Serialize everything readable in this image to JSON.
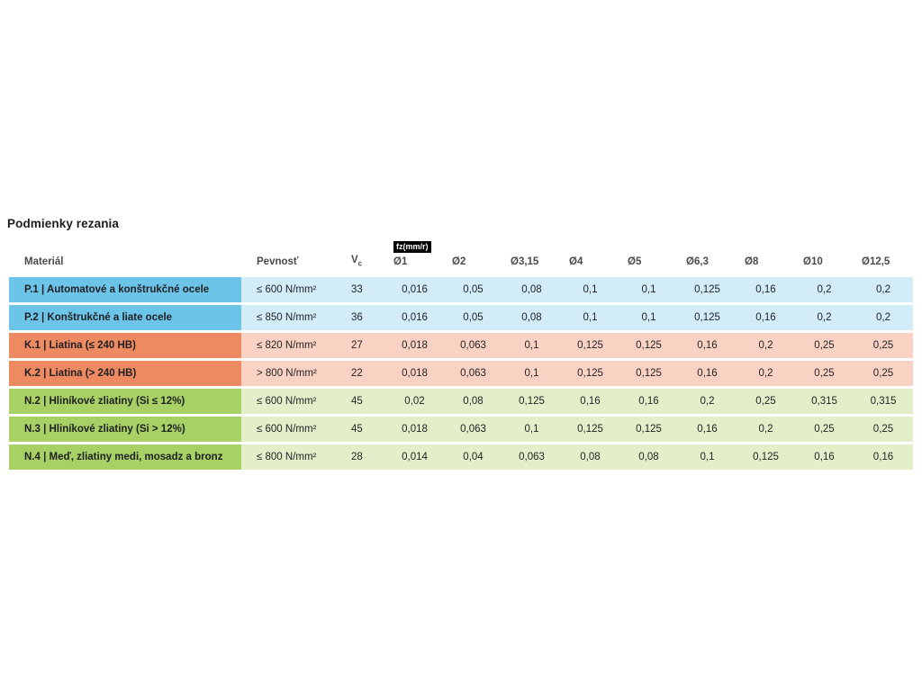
{
  "title": "Podmienky rezania",
  "colors": {
    "blue_dark": "#6cc4e8",
    "blue_light": "#d2ecf8",
    "orange_dark": "#ee8a62",
    "orange_light": "#fad2c3",
    "green_dark": "#a7d065",
    "green_light": "#e3efc9",
    "badge_bg": "#000000",
    "badge_text": "#ffffff"
  },
  "table": {
    "headers": {
      "material": "Materiál",
      "pevnost": "Pevnosť",
      "vc_main": "V",
      "vc_sub": "c",
      "fz_badge": "fz(mm/r)",
      "diameters": [
        "Ø1",
        "Ø2",
        "Ø3,15",
        "Ø4",
        "Ø5",
        "Ø6,3",
        "Ø8",
        "Ø10",
        "Ø12,5"
      ]
    },
    "rows": [
      {
        "tone": "blue",
        "material": "P.1 | Automatové a konštrukčné ocele",
        "pevnost": "≤ 600 N/mm²",
        "vc": "33",
        "fz": [
          "0,016",
          "0,05",
          "0,08",
          "0,1",
          "0,1",
          "0,125",
          "0,16",
          "0,2",
          "0,2"
        ]
      },
      {
        "tone": "blue",
        "material": "P.2 | Konštrukčné a liate ocele",
        "pevnost": "≤ 850 N/mm²",
        "vc": "36",
        "fz": [
          "0,016",
          "0,05",
          "0,08",
          "0,1",
          "0,1",
          "0,125",
          "0,16",
          "0,2",
          "0,2"
        ]
      },
      {
        "tone": "orange",
        "material": "K.1 | Liatina (≤ 240 HB)",
        "pevnost": "≤ 820 N/mm²",
        "vc": "27",
        "fz": [
          "0,018",
          "0,063",
          "0,1",
          "0,125",
          "0,125",
          "0,16",
          "0,2",
          "0,25",
          "0,25"
        ]
      },
      {
        "tone": "orange",
        "material": "K.2 | Liatina (> 240 HB)",
        "pevnost": "> 800 N/mm²",
        "vc": "22",
        "fz": [
          "0,018",
          "0,063",
          "0,1",
          "0,125",
          "0,125",
          "0,16",
          "0,2",
          "0,25",
          "0,25"
        ]
      },
      {
        "tone": "green",
        "material": "N.2 | Hliníkové zliatiny (Si ≤ 12%)",
        "pevnost": "≤ 600 N/mm²",
        "vc": "45",
        "fz": [
          "0,02",
          "0,08",
          "0,125",
          "0,16",
          "0,16",
          "0,2",
          "0,25",
          "0,315",
          "0,315"
        ]
      },
      {
        "tone": "green",
        "material": "N.3 | Hliníkové zliatiny (Si > 12%)",
        "pevnost": "≤ 600 N/mm²",
        "vc": "45",
        "fz": [
          "0,018",
          "0,063",
          "0,1",
          "0,125",
          "0,125",
          "0,16",
          "0,2",
          "0,25",
          "0,25"
        ]
      },
      {
        "tone": "green",
        "material": "N.4 | Meď, zliatiny medi, mosadz a bronz",
        "pevnost": "≤ 800 N/mm²",
        "vc": "28",
        "fz": [
          "0,014",
          "0,04",
          "0,063",
          "0,08",
          "0,08",
          "0,1",
          "0,125",
          "0,16",
          "0,16"
        ]
      }
    ]
  }
}
